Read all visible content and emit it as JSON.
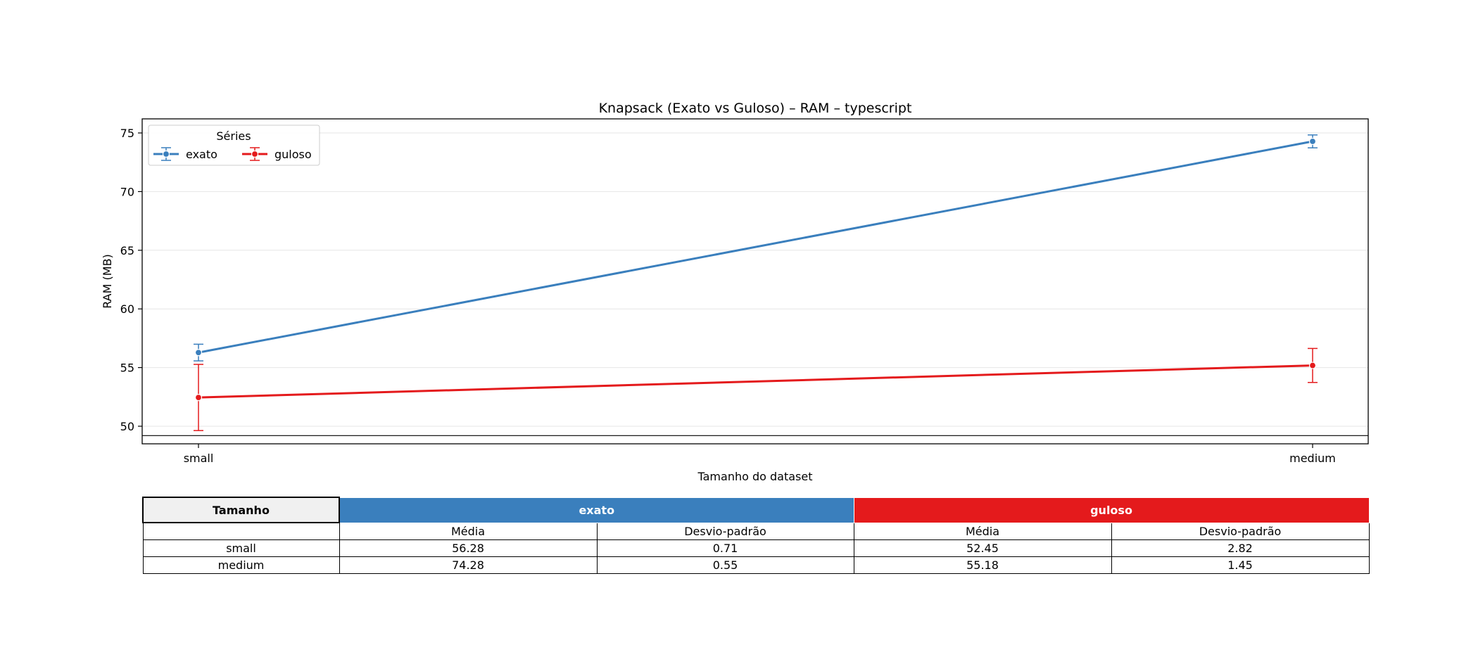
{
  "chart_data": {
    "type": "line",
    "title": "Knapsack (Exato vs Guloso) – RAM – typescript",
    "xlabel": "Tamanho do dataset",
    "ylabel": "RAM (MB)",
    "categories": [
      "small",
      "medium"
    ],
    "ylim": [
      48.5,
      76.2
    ],
    "yticks": [
      50,
      55,
      60,
      65,
      70,
      75
    ],
    "grid": "horizontal",
    "legend": {
      "title": "Séries",
      "placement": "top-left"
    },
    "series": [
      {
        "name": "exato",
        "color": "#3a7fbd",
        "values": [
          56.28,
          74.28
        ],
        "errors": [
          0.71,
          0.55
        ]
      },
      {
        "name": "guloso",
        "color": "#e41a1c",
        "values": [
          52.45,
          55.18
        ],
        "errors": [
          2.82,
          1.45
        ]
      }
    ],
    "hline": 49.2
  },
  "table": {
    "header_first": "Tamanho",
    "series_headers": [
      {
        "name": "exato",
        "color": "#3a7fbd"
      },
      {
        "name": "guloso",
        "color": "#e41a1c"
      }
    ],
    "sub_headers": [
      "",
      "Média",
      "Desvio-padrão",
      "Média",
      "Desvio-padrão"
    ],
    "rows": [
      [
        "small",
        "56.28",
        "0.71",
        "52.45",
        "2.82"
      ],
      [
        "medium",
        "74.28",
        "0.55",
        "55.18",
        "1.45"
      ]
    ]
  }
}
